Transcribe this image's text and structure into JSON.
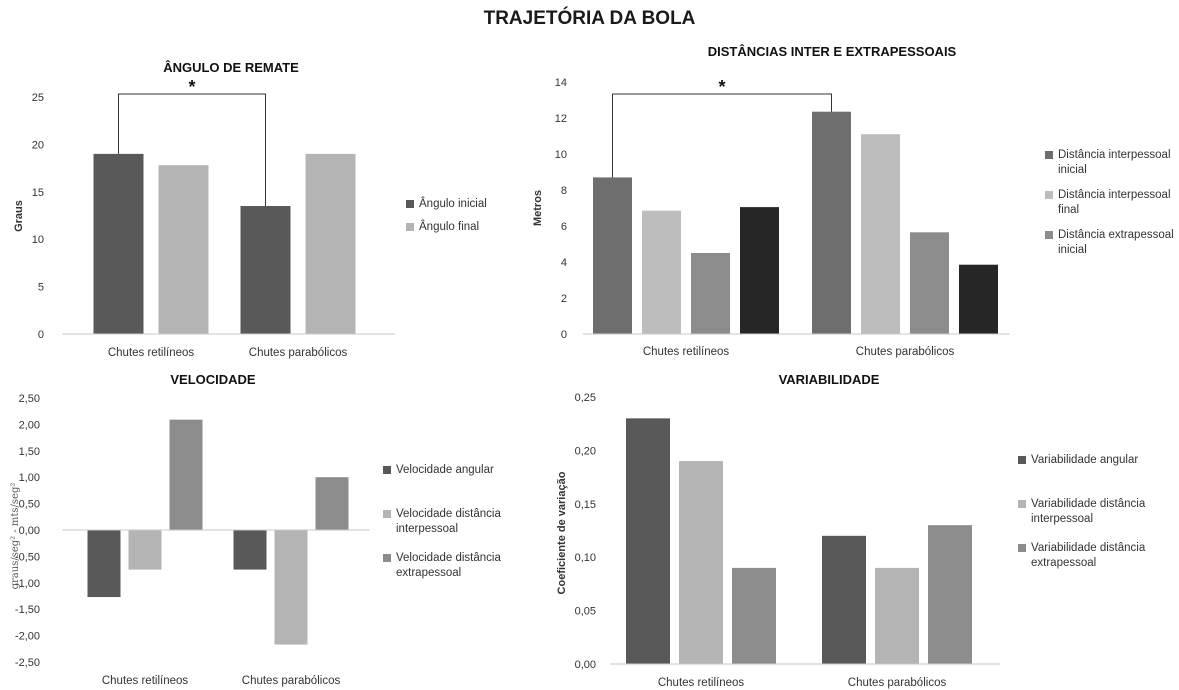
{
  "page": {
    "title": "TRAJETÓRIA DA BOLA"
  },
  "chart_data": [
    {
      "id": "angulo",
      "type": "bar",
      "title": "ÂNGULO DE REMATE",
      "ylabel": "Graus",
      "ylim": [
        0,
        25
      ],
      "ticks": [
        0,
        5,
        10,
        15,
        20,
        25
      ],
      "tick_labels": [
        "0",
        "5",
        "10",
        "15",
        "20",
        "25"
      ],
      "categories": [
        "Chutes retilíneos",
        "Chutes parabólicos"
      ],
      "series": [
        {
          "name": "Ângulo inicial",
          "color": "#595959",
          "values": [
            19,
            13.5
          ]
        },
        {
          "name": "Ângulo final",
          "color": "#b4b4b4",
          "values": [
            17.8,
            19
          ]
        }
      ],
      "significance": {
        "marker": "*",
        "series": 0,
        "categories": [
          0,
          1
        ]
      },
      "legend": "right",
      "grid": false
    },
    {
      "id": "distancias",
      "type": "bar",
      "title": "DISTÂNCIAS INTER E EXTRAPESSOAIS",
      "ylabel": "Metros",
      "ylim": [
        0,
        14
      ],
      "ticks": [
        0,
        2,
        4,
        6,
        8,
        10,
        12,
        14
      ],
      "tick_labels": [
        "0",
        "2",
        "4",
        "6",
        "8",
        "10",
        "12",
        "14"
      ],
      "categories": [
        "Chutes retilíneos",
        "Chutes parabólicos"
      ],
      "series": [
        {
          "name": "Distância interpessoal inicial",
          "legend_lines": [
            "Distância interpessoal",
            "inicial"
          ],
          "color": "#6e6e6e",
          "values": [
            8.7,
            12.35
          ]
        },
        {
          "name": "Distância interpessoal final",
          "legend_lines": [
            "Distância interpessoal",
            "final"
          ],
          "color": "#bdbdbd",
          "values": [
            6.85,
            11.1
          ]
        },
        {
          "name": "Distância extrapessoal inicial",
          "legend_lines": [
            "Distância extrapessoal",
            "inicial"
          ],
          "color": "#8c8c8c",
          "values": [
            4.5,
            5.65
          ]
        },
        {
          "name": "",
          "legend_lines": [],
          "color": "#262626",
          "values": [
            7.05,
            3.85
          ]
        }
      ],
      "significance": {
        "marker": "*",
        "series": 0,
        "categories": [
          0,
          1
        ]
      },
      "legend": "right",
      "grid": false
    },
    {
      "id": "velocidade",
      "type": "bar",
      "title": "VELOCIDADE",
      "ylabel": "graus/seg² - mts/seg²",
      "ylim": [
        -2.5,
        2.5
      ],
      "ticks": [
        -2.5,
        -2.0,
        -1.5,
        -1.0,
        -0.5,
        0.0,
        0.5,
        1.0,
        1.5,
        2.0,
        2.5
      ],
      "tick_labels": [
        "-2,50",
        "-2,00",
        "-1,50",
        "-1,00",
        "-0,50",
        "0,00",
        "0,50",
        "1,00",
        "1,50",
        "2,00",
        "2,50"
      ],
      "categories": [
        "Chutes retilíneos",
        "Chutes parabólicos"
      ],
      "series": [
        {
          "name": "Velocidade angular",
          "legend_lines": [
            "Velocidade angular"
          ],
          "color": "#595959",
          "values": [
            -1.27,
            -0.75
          ]
        },
        {
          "name": "Velocidade distância interpessoal",
          "legend_lines": [
            "Velocidade distância",
            "interpessoal"
          ],
          "color": "#b4b4b4",
          "values": [
            -0.75,
            -2.17
          ]
        },
        {
          "name": "Velocidade distância extrapessoal",
          "legend_lines": [
            "Velocidade distância",
            "extrapessoal"
          ],
          "color": "#8c8c8c",
          "values": [
            2.09,
            1.0
          ]
        }
      ],
      "legend": "right",
      "grid": false
    },
    {
      "id": "variabilidade",
      "type": "bar",
      "title": "VARIABILIDADE",
      "ylabel": "Coeficiente de variação",
      "ylim": [
        0,
        0.25
      ],
      "ticks": [
        0,
        0.05,
        0.1,
        0.15,
        0.2,
        0.25
      ],
      "tick_labels": [
        "0,00",
        "0,05",
        "0,10",
        "0,15",
        "0,20",
        "0,25"
      ],
      "categories": [
        "Chutes retilíneos",
        "Chutes parabólicos"
      ],
      "series": [
        {
          "name": "Variabilidade angular",
          "legend_lines": [
            "Variabilidade angular"
          ],
          "color": "#595959",
          "values": [
            0.23,
            0.12
          ]
        },
        {
          "name": "Variabilidade distância interpessoal",
          "legend_lines": [
            "Variabilidade distância",
            "interpessoal"
          ],
          "color": "#b4b4b4",
          "values": [
            0.19,
            0.09
          ]
        },
        {
          "name": "Variabilidade distância extrapessoal",
          "legend_lines": [
            "Variabilidade distância",
            "extrapessoal"
          ],
          "color": "#8c8c8c",
          "values": [
            0.09,
            0.13
          ]
        }
      ],
      "legend": "right",
      "grid": false
    }
  ]
}
